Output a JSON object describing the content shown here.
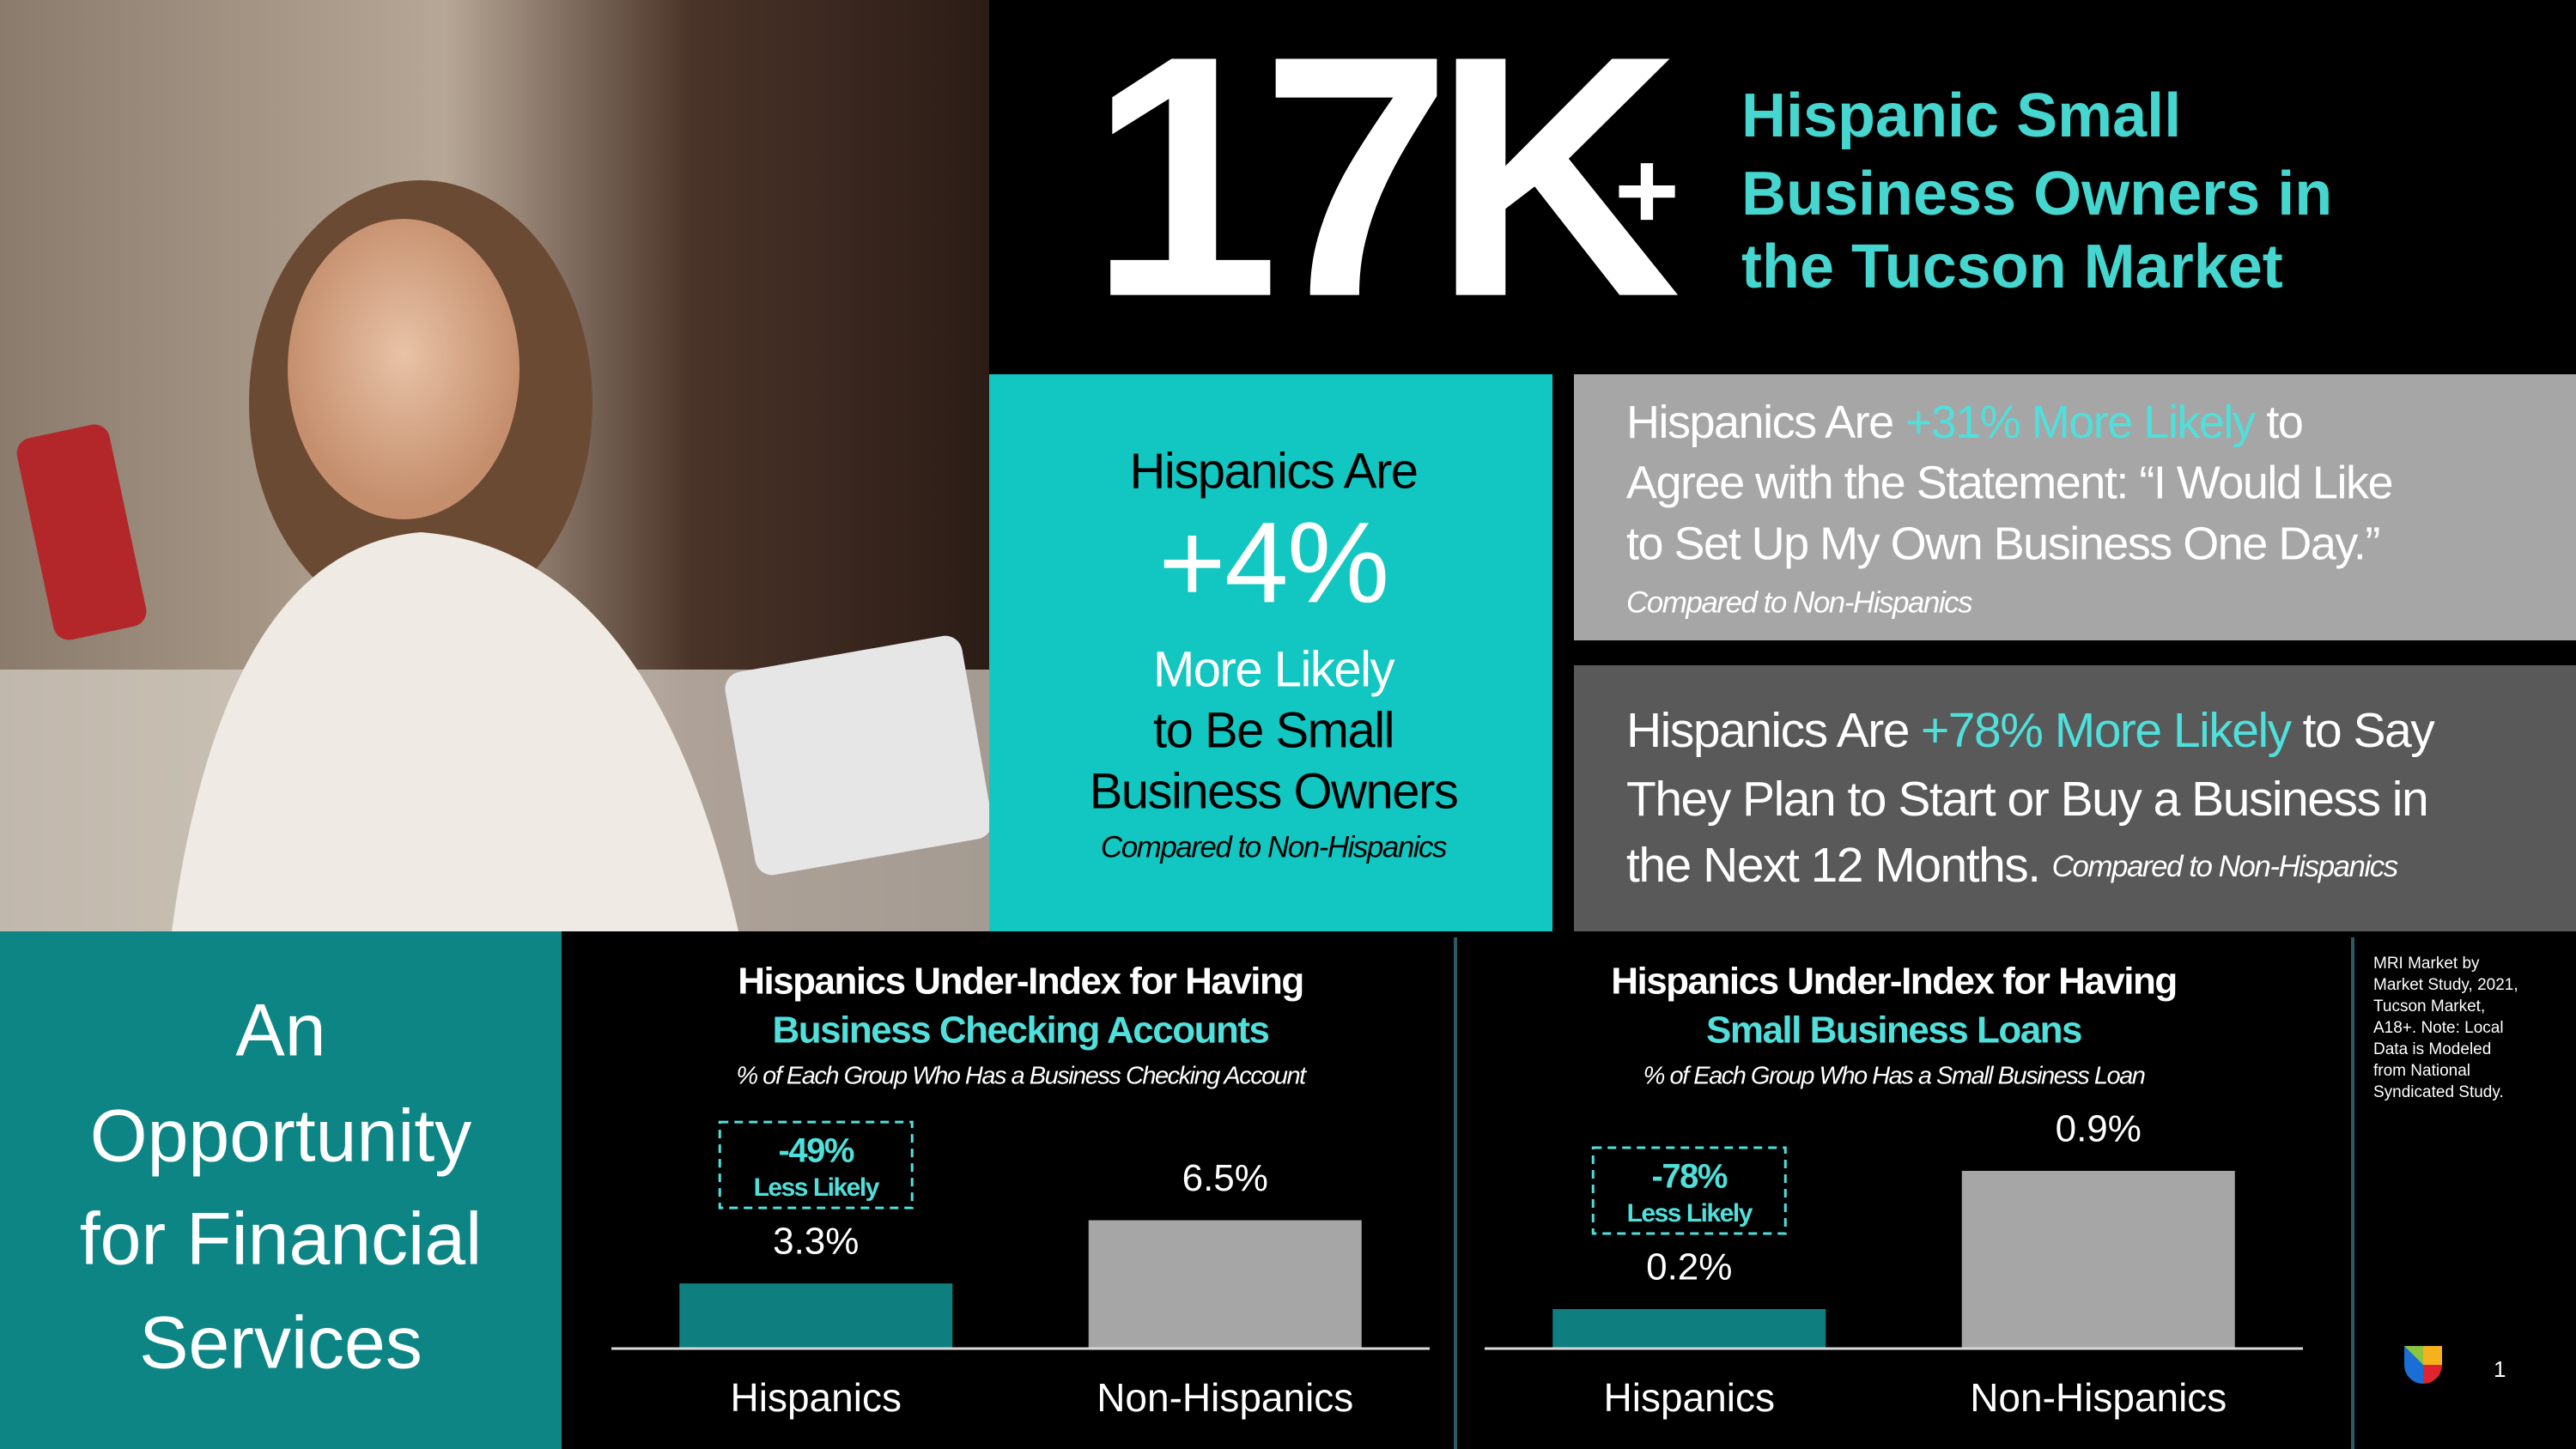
{
  "headline": {
    "number": "17K",
    "plus": "+",
    "lines": [
      "Hispanic Small",
      "Business Owners in",
      "the Tucson Market"
    ]
  },
  "teal_box": {
    "intro": "Hispanics Are",
    "stat": "+4%",
    "lines": [
      "More Likely",
      "to Be Small",
      "Business Owners"
    ],
    "note": "Compared to Non-Hispanics"
  },
  "statement_1": {
    "lines": [
      [
        "Hispanics Are",
        "+31% More Likely",
        "to"
      ],
      [
        "Agree with the Statement: “I Would Like"
      ],
      [
        "to Set Up My Own Business One Day.”"
      ]
    ],
    "note": "Compared to Non-Hispanics"
  },
  "statement_2": {
    "lines": [
      [
        "Hispanics Are",
        "+78% More Likely",
        "to Say"
      ],
      [
        "They Plan to Start or Buy a Business in"
      ],
      [
        "the Next 12 Months."
      ]
    ],
    "note": "Compared to Non-Hispanics"
  },
  "side_panel": {
    "lines": [
      "An",
      "Opportunity",
      "for Financial",
      "Services"
    ]
  },
  "chart_data": [
    {
      "type": "bar",
      "title": "Hispanics Under-Index for Having",
      "title_highlight": "Business Checking Accounts",
      "subtitle": "% of Each Group Who Has a Business Checking Account",
      "categories": [
        "Hispanics",
        "Non-Hispanics"
      ],
      "values": [
        3.3,
        6.5
      ],
      "value_labels": [
        "3.3%",
        "6.5%"
      ],
      "colors": [
        "#0e7f7e",
        "#a6a6a6"
      ],
      "ylim": [
        0,
        10
      ],
      "callout": {
        "value": "-49%",
        "label": "Less Likely"
      }
    },
    {
      "type": "bar",
      "title": "Hispanics Under-Index for Having",
      "title_highlight": "Small Business Loans",
      "subtitle": "% of Each Group Who Has a Small Business Loan",
      "categories": [
        "Hispanics",
        "Non-Hispanics"
      ],
      "values": [
        0.2,
        0.9
      ],
      "value_labels": [
        "0.2%",
        "0.9%"
      ],
      "colors": [
        "#0e7f7e",
        "#a6a6a6"
      ],
      "ylim": [
        0,
        1
      ],
      "callout": {
        "value": "-78%",
        "label": "Less Likely"
      }
    }
  ],
  "source_note": [
    "MRI Market by",
    "Market Study, 2021,",
    "Tucson Market,",
    "A18+. Note: Local",
    "Data is Modeled",
    "from National",
    "Syndicated Study."
  ],
  "page_number": "1"
}
